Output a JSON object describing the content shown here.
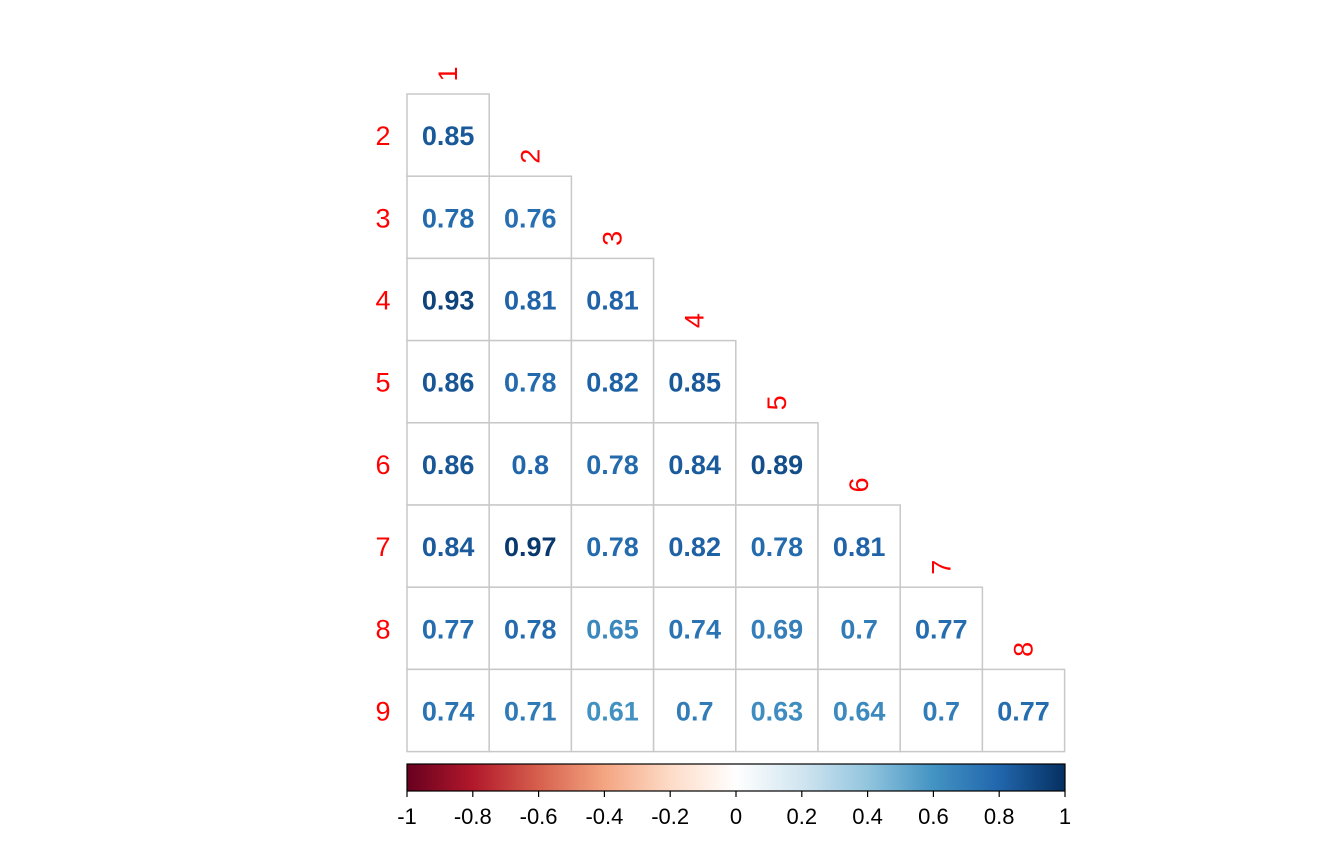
{
  "chart_data": {
    "type": "heatmap",
    "variables": [
      "1",
      "2",
      "3",
      "4",
      "5",
      "6",
      "7",
      "8",
      "9"
    ],
    "row_labels": [
      "2",
      "3",
      "4",
      "5",
      "6",
      "7",
      "8",
      "9"
    ],
    "column_labels": [
      "1",
      "2",
      "3",
      "4",
      "5",
      "6",
      "7",
      "8"
    ],
    "matrix_lower": [
      [
        0.85
      ],
      [
        0.78,
        0.76
      ],
      [
        0.93,
        0.81,
        0.81
      ],
      [
        0.86,
        0.78,
        0.82,
        0.85
      ],
      [
        0.86,
        0.8,
        0.78,
        0.84,
        0.89
      ],
      [
        0.84,
        0.97,
        0.78,
        0.82,
        0.78,
        0.81
      ],
      [
        0.77,
        0.78,
        0.65,
        0.74,
        0.69,
        0.7,
        0.77
      ],
      [
        0.74,
        0.71,
        0.61,
        0.7,
        0.63,
        0.64,
        0.7,
        0.77
      ]
    ],
    "cell_labels": [
      [
        "0.85"
      ],
      [
        "0.78",
        "0.76"
      ],
      [
        "0.93",
        "0.81",
        "0.81"
      ],
      [
        "0.86",
        "0.78",
        "0.82",
        "0.85"
      ],
      [
        "0.86",
        "0.8",
        "0.78",
        "0.84",
        "0.89"
      ],
      [
        "0.84",
        "0.97",
        "0.78",
        "0.82",
        "0.78",
        "0.81"
      ],
      [
        "0.77",
        "0.78",
        "0.65",
        "0.74",
        "0.69",
        "0.7",
        "0.77"
      ],
      [
        "0.74",
        "0.71",
        "0.61",
        "0.7",
        "0.63",
        "0.64",
        "0.7",
        "0.77"
      ]
    ],
    "color_scale": {
      "range": [
        -1,
        1
      ],
      "stops": [
        {
          "value": -1.0,
          "color": "#67001F"
        },
        {
          "value": -0.8,
          "color": "#B2182B"
        },
        {
          "value": -0.6,
          "color": "#D6604D"
        },
        {
          "value": -0.4,
          "color": "#F4A582"
        },
        {
          "value": -0.2,
          "color": "#FDDBC7"
        },
        {
          "value": 0.0,
          "color": "#FFFFFF"
        },
        {
          "value": 0.2,
          "color": "#D1E5F0"
        },
        {
          "value": 0.4,
          "color": "#92C5DE"
        },
        {
          "value": 0.6,
          "color": "#4393C3"
        },
        {
          "value": 0.8,
          "color": "#2166AC"
        },
        {
          "value": 1.0,
          "color": "#053061"
        }
      ],
      "ticks": [
        "-1",
        "-0.8",
        "-0.6",
        "-0.4",
        "-0.2",
        "0",
        "0.2",
        "0.4",
        "0.6",
        "0.8",
        "1"
      ],
      "orientation": "horizontal",
      "placement": "bottom"
    },
    "label_color": "#FF0000",
    "grid_color": "#C8C8C8",
    "title": "",
    "xlabel": "",
    "ylabel": ""
  }
}
